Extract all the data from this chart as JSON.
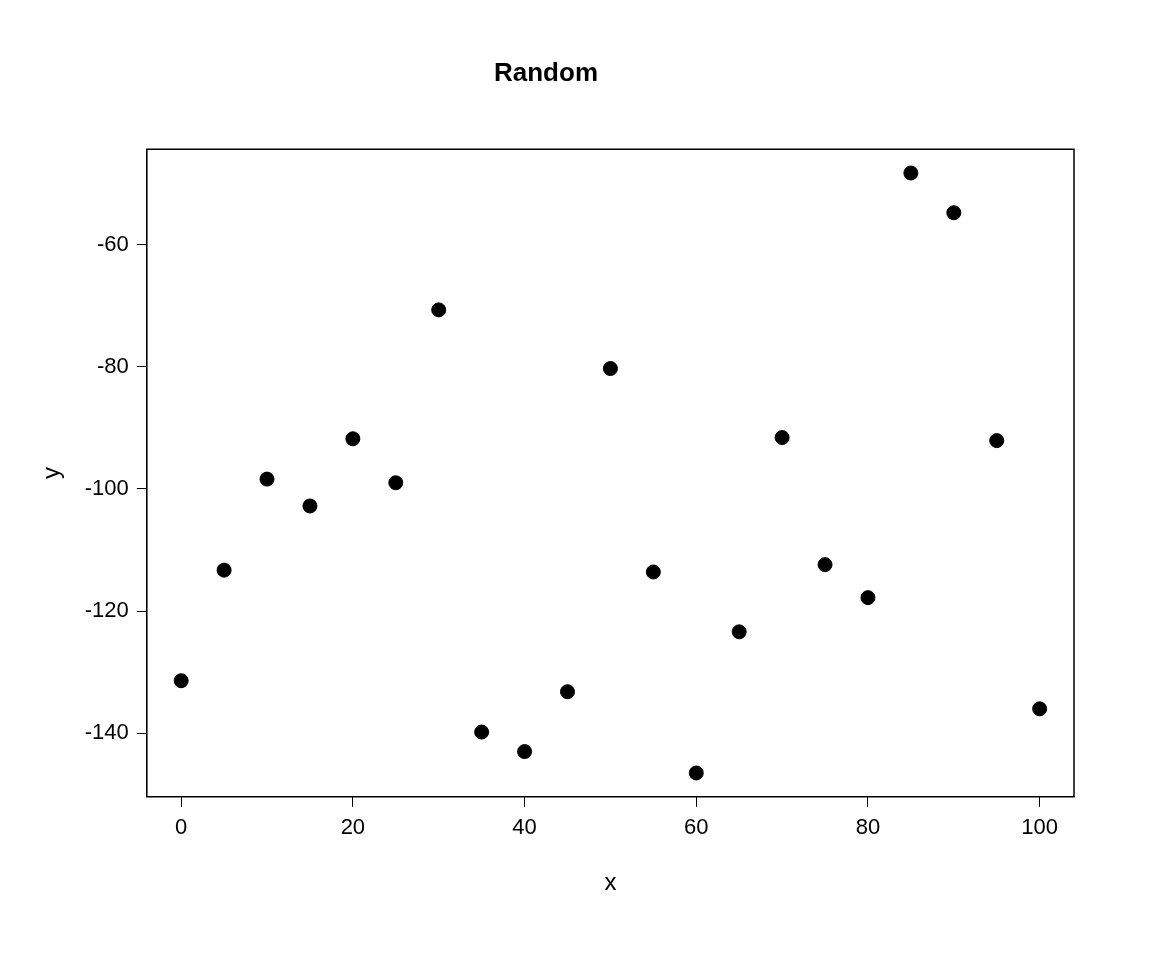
{
  "chart_data": {
    "type": "scatter",
    "title": "Random",
    "xlabel": "x",
    "ylabel": "y",
    "x": [
      0,
      5,
      10,
      15,
      20,
      25,
      30,
      35,
      40,
      45,
      50,
      55,
      60,
      65,
      70,
      75,
      80,
      85,
      90,
      95,
      100
    ],
    "series": [
      {
        "color": "#000000",
        "values": [
          -131.4,
          -113.3,
          -98.4,
          -102.8,
          -91.8,
          -99.0,
          -70.7,
          -139.8,
          -143.0,
          -133.2,
          -80.3,
          -113.6,
          -146.5,
          -123.4,
          -91.6,
          -112.4,
          -117.8,
          -48.3,
          -54.8,
          -92.1,
          -136.0
        ]
      }
    ],
    "xlim": [
      -4,
      104
    ],
    "ylim": [
      -150.4,
      -44.4
    ],
    "xticks": [
      0,
      20,
      40,
      60,
      80,
      100
    ],
    "yticks": [
      -140,
      -120,
      -100,
      -80,
      -60
    ],
    "grid": false,
    "legend": false,
    "marker": "circle"
  }
}
